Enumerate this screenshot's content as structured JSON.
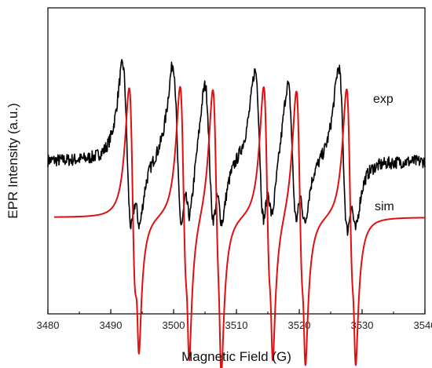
{
  "chart_data": {
    "type": "line",
    "title": "",
    "xlabel": "Magnetic Field  (G)",
    "ylabel": "EPR Intensity  (a.u.)",
    "xlim": [
      3480,
      3540
    ],
    "x_ticks": [
      3480,
      3490,
      3500,
      3510,
      3520,
      3530,
      3540
    ],
    "y_ticks_shown": false,
    "grid": false,
    "legend": "none",
    "series": [
      {
        "name": "exp",
        "color": "#000000",
        "x_range": [
          3480,
          3540
        ],
        "baseline": 0.62,
        "noise": 0.035,
        "lines": [
          {
            "center": 3492.6,
            "amp": 0.3,
            "width": 1.3
          },
          {
            "center": 3494.2,
            "amp": 0.1,
            "width": 0.9
          },
          {
            "center": 3500.6,
            "amp": 0.3,
            "width": 1.3
          },
          {
            "center": 3502.2,
            "amp": 0.1,
            "width": 0.9
          },
          {
            "center": 3505.7,
            "amp": 0.26,
            "width": 1.3
          },
          {
            "center": 3507.3,
            "amp": 0.1,
            "width": 0.9
          },
          {
            "center": 3513.7,
            "amp": 0.28,
            "width": 1.3
          },
          {
            "center": 3515.3,
            "amp": 0.1,
            "width": 0.9
          },
          {
            "center": 3518.9,
            "amp": 0.26,
            "width": 1.3
          },
          {
            "center": 3520.5,
            "amp": 0.1,
            "width": 0.9
          },
          {
            "center": 3527.0,
            "amp": 0.3,
            "width": 1.3
          },
          {
            "center": 3528.6,
            "amp": 0.1,
            "width": 0.9
          }
        ]
      },
      {
        "name": "sim",
        "color": "#e01010",
        "x_range": [
          3481,
          3540
        ],
        "baseline": 0.0,
        "noise": 0.0,
        "lines": [
          {
            "center": 3493.5,
            "amp": 0.4,
            "width": 1.0
          },
          {
            "center": 3494.3,
            "amp": 0.14,
            "width": 0.45
          },
          {
            "center": 3501.6,
            "amp": 0.4,
            "width": 1.0
          },
          {
            "center": 3502.3,
            "amp": 0.14,
            "width": 0.45
          },
          {
            "center": 3506.8,
            "amp": 0.4,
            "width": 1.0
          },
          {
            "center": 3507.4,
            "amp": 0.14,
            "width": 0.45
          },
          {
            "center": 3514.9,
            "amp": 0.4,
            "width": 1.0
          },
          {
            "center": 3515.6,
            "amp": 0.14,
            "width": 0.45
          },
          {
            "center": 3520.1,
            "amp": 0.4,
            "width": 1.0
          },
          {
            "center": 3520.8,
            "amp": 0.14,
            "width": 0.45
          },
          {
            "center": 3528.1,
            "amp": 0.4,
            "width": 1.0
          },
          {
            "center": 3528.8,
            "amp": 0.14,
            "width": 0.45
          }
        ]
      }
    ]
  }
}
